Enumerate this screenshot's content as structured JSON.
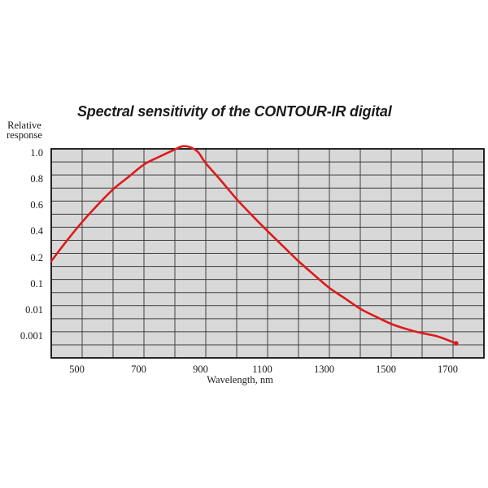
{
  "title": "Spectral sensitivity of the CONTOUR-IR digital",
  "y_axis": {
    "label_line1": "Relative",
    "label_line2": "response",
    "ticks": [
      {
        "value": 1.0,
        "label": "1.0"
      },
      {
        "value": 0.8,
        "label": "0.8"
      },
      {
        "value": 0.6,
        "label": "0.6"
      },
      {
        "value": 0.4,
        "label": "0.4"
      },
      {
        "value": 0.2,
        "label": "0.2"
      },
      {
        "value": 0.1,
        "label": "0.1"
      },
      {
        "value": 0.01,
        "label": "0.01"
      },
      {
        "value": 0.001,
        "label": "0.001"
      }
    ]
  },
  "x_axis": {
    "label": "Wavelength, nm",
    "ticks": [
      {
        "nm": 500,
        "label": "500"
      },
      {
        "nm": 700,
        "label": "700"
      },
      {
        "nm": 900,
        "label": "900"
      },
      {
        "nm": 1100,
        "label": "1100"
      },
      {
        "nm": 1300,
        "label": "1300"
      },
      {
        "nm": 1500,
        "label": "1500"
      },
      {
        "nm": 1700,
        "label": "1700"
      }
    ]
  },
  "colors": {
    "curve": "#dd1a1a",
    "plot_background": "#d8d8d8",
    "grid_line": "#3f3f3f",
    "border": "#111111",
    "text": "#1a1a1a",
    "page_background": "#ffffff"
  },
  "chart_data": {
    "type": "line",
    "title": "Spectral sensitivity of the CONTOUR-IR digital",
    "xlabel": "Wavelength, nm",
    "ylabel": "Relative response",
    "x_range_nm": [
      400,
      1800
    ],
    "x_gridline_step_nm": 100,
    "x_tick_labels": [
      "500",
      "700",
      "900",
      "1100",
      "1300",
      "1500",
      "1700"
    ],
    "y_tick_labels": [
      "1.0",
      "0.8",
      "0.6",
      "0.4",
      "0.2",
      "0.1",
      "0.01",
      "0.001"
    ],
    "y_scale_note": "nonlinear: 1.0 to 0.2 in 0.2 steps (2 grid rows each), then 0.2-0.1, 0.1-0.01, 0.01-0.001, 0.001-0.0001 each spanning 2 grid rows; 16 rows total",
    "grid": true,
    "legend": false,
    "plot_background": "#d8d8d8",
    "series": [
      {
        "name": "CONTOUR-IR digital spectral sensitivity",
        "color": "#dd1a1a",
        "peak": {
          "wavelength_nm": 825,
          "value": 1.02
        },
        "points": [
          [
            400,
            0.17
          ],
          [
            450,
            0.295
          ],
          [
            500,
            0.44
          ],
          [
            550,
            0.57
          ],
          [
            600,
            0.69
          ],
          [
            650,
            0.785
          ],
          [
            700,
            0.88
          ],
          [
            750,
            0.94
          ],
          [
            800,
            0.995
          ],
          [
            825,
            1.02
          ],
          [
            850,
            1.012
          ],
          [
            875,
            0.975
          ],
          [
            900,
            0.89
          ],
          [
            950,
            0.755
          ],
          [
            1000,
            0.615
          ],
          [
            1050,
            0.49
          ],
          [
            1100,
            0.37
          ],
          [
            1150,
            0.255
          ],
          [
            1200,
            0.17
          ],
          [
            1250,
            0.118
          ],
          [
            1300,
            0.071
          ],
          [
            1350,
            0.035
          ],
          [
            1400,
            0.0089
          ],
          [
            1450,
            0.0062
          ],
          [
            1500,
            0.0037
          ],
          [
            1550,
            0.0019
          ],
          [
            1600,
            0.00095
          ],
          [
            1650,
            0.00084
          ],
          [
            1710,
            0.0006
          ]
        ]
      }
    ]
  }
}
